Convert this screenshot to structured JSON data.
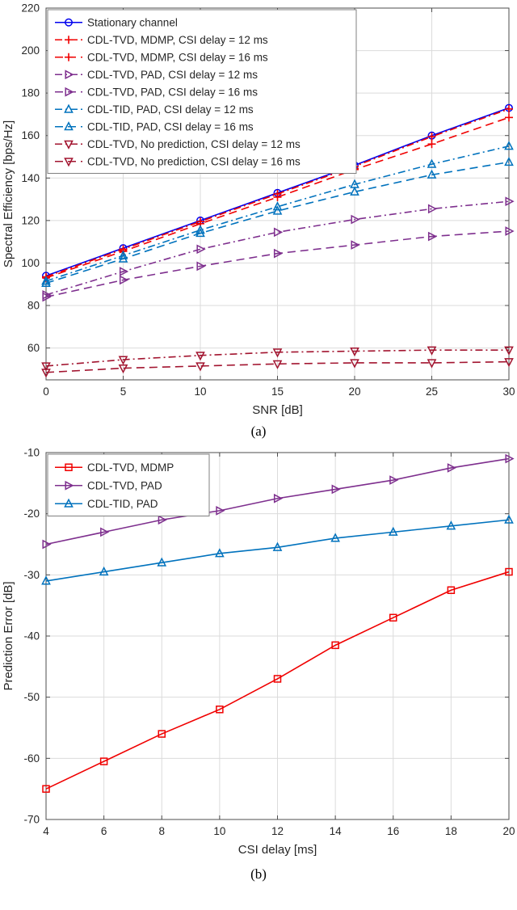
{
  "figure": {
    "caption_a": "(a)",
    "caption_b": "(b)"
  },
  "chart_data": [
    {
      "type": "line",
      "title": "",
      "xlabel": "SNR [dB]",
      "ylabel": "Spectral Efficiency [bps/Hz]",
      "xlim": [
        0,
        30
      ],
      "ylim": [
        45,
        220
      ],
      "xticks": [
        0,
        5,
        10,
        15,
        20,
        25,
        30
      ],
      "yticks": [
        60,
        80,
        100,
        120,
        140,
        160,
        180,
        200,
        220
      ],
      "grid": true,
      "legend_position": "top-left",
      "x": [
        0,
        5,
        10,
        15,
        20,
        25,
        30
      ],
      "series": [
        {
          "name": "Stationary channel",
          "color": "#0000EE",
          "dash": "solid",
          "marker": "circle",
          "values": [
            94,
            107,
            120,
            133,
            146,
            160,
            173
          ]
        },
        {
          "name": "CDL-TVD, MDMP, CSI delay = 12 ms",
          "color": "#F00000",
          "dash": "dashdot",
          "marker": "plus",
          "values": [
            93.5,
            106.5,
            119.5,
            132.5,
            145.5,
            159.5,
            172.5
          ]
        },
        {
          "name": "CDL-TVD, MDMP, CSI delay = 16 ms",
          "color": "#F00000",
          "dash": "dashed",
          "marker": "plus",
          "values": [
            93,
            105.5,
            118.5,
            131,
            144,
            156,
            168.5
          ]
        },
        {
          "name": "CDL-TVD, PAD, CSI delay = 12 ms",
          "color": "#7E2F8E",
          "dash": "dashdot",
          "marker": "triangle-right",
          "values": [
            85,
            96,
            106.5,
            114.5,
            120.5,
            125.5,
            129
          ]
        },
        {
          "name": "CDL-TVD, PAD, CSI delay = 16 ms",
          "color": "#7E2F8E",
          "dash": "dashed",
          "marker": "triangle-right",
          "values": [
            84,
            92,
            98.5,
            104.5,
            108.5,
            112.5,
            115
          ]
        },
        {
          "name": "CDL-TID, PAD, CSI delay = 12 ms",
          "color": "#0072BD",
          "dash": "dashdot",
          "marker": "triangle-up",
          "values": [
            91.5,
            103.5,
            115.5,
            126.5,
            137,
            146.5,
            155
          ]
        },
        {
          "name": "CDL-TID, PAD, CSI delay = 16 ms",
          "color": "#0072BD",
          "dash": "dashed",
          "marker": "triangle-up",
          "values": [
            90.5,
            102,
            114,
            124.5,
            133.5,
            141.5,
            147.5
          ]
        },
        {
          "name": "CDL-TVD, No prediction, CSI delay = 12 ms",
          "color": "#A2142F",
          "dash": "dashdot",
          "marker": "triangle-down",
          "values": [
            51.5,
            54.5,
            56.5,
            58,
            58.5,
            59,
            59
          ]
        },
        {
          "name": "CDL-TVD, No prediction, CSI delay = 16 ms",
          "color": "#A2142F",
          "dash": "dashed",
          "marker": "triangle-down",
          "values": [
            48.5,
            50.5,
            51.5,
            52.5,
            53,
            53,
            53.5
          ]
        }
      ]
    },
    {
      "type": "line",
      "title": "",
      "xlabel": "CSI delay [ms]",
      "ylabel": "Prediction Error [dB]",
      "xlim": [
        4,
        20
      ],
      "ylim": [
        -70,
        -10
      ],
      "xticks": [
        4,
        6,
        8,
        10,
        12,
        14,
        16,
        18,
        20
      ],
      "yticks": [
        -70,
        -60,
        -50,
        -40,
        -30,
        -20,
        -10
      ],
      "grid": true,
      "legend_position": "top-left",
      "x": [
        4,
        6,
        8,
        10,
        12,
        14,
        16,
        18,
        20
      ],
      "series": [
        {
          "name": "CDL-TVD, MDMP",
          "color": "#F00000",
          "dash": "solid",
          "marker": "square",
          "values": [
            -65,
            -60.5,
            -56,
            -52,
            -47,
            -41.5,
            -37,
            -32.5,
            -29.5
          ]
        },
        {
          "name": "CDL-TVD, PAD",
          "color": "#7E2F8E",
          "dash": "solid",
          "marker": "triangle-right",
          "values": [
            -25,
            -23,
            -21,
            -19.5,
            -17.5,
            -16,
            -14.5,
            -12.5,
            -11
          ]
        },
        {
          "name": "CDL-TID, PAD",
          "color": "#0072BD",
          "dash": "solid",
          "marker": "triangle-up",
          "values": [
            -31,
            -29.5,
            -28,
            -26.5,
            -25.5,
            -24,
            -23,
            -22,
            -21
          ]
        }
      ]
    }
  ],
  "style": {
    "grid_color": "#DBDBDB",
    "axis_color": "#4D4D4D",
    "text_color": "#262626",
    "legend_border": "#808080"
  }
}
